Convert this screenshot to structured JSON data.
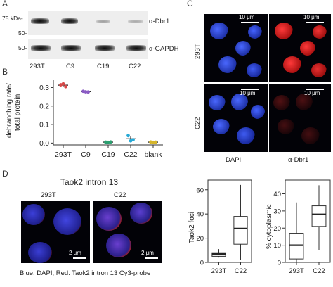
{
  "panels": {
    "A": {
      "label": "A",
      "mw_markers": [
        "75 kDa-",
        "50-",
        "50-"
      ],
      "lanes": [
        "293T",
        "C9",
        "C19",
        "C22"
      ],
      "blots": [
        "α-Dbr1",
        "α-GAPDH"
      ]
    },
    "B": {
      "label": "B",
      "ylabel_line1": "debranching rate/",
      "ylabel_line2": "total protein",
      "title": "",
      "point_colors": [
        "#d84a4a",
        "#8a5bc4",
        "#2a9f6f",
        "#26a9d6",
        "#d6b62a"
      ]
    },
    "C": {
      "label": "C",
      "rows": [
        "293T",
        "C22"
      ],
      "channels": [
        "DAPI",
        "α-Dbr1"
      ],
      "scale_bar": "10 μm"
    },
    "D": {
      "label": "D",
      "title": "Taok2 intron 13",
      "cells": [
        "293T",
        "C22"
      ],
      "scale_bar": "2 μm",
      "caption": "Blue: DAPI; Red: Taok2 intron 13 Cy3-probe",
      "box1_ylabel": "Taok2 foci",
      "box2_ylabel": "% cytoplasmic"
    }
  },
  "chart_data": [
    {
      "type": "scatter",
      "title": "",
      "xlabel": "",
      "ylabel": "debranching rate/ total protein",
      "categories": [
        "293T",
        "C9",
        "C19",
        "C22",
        "blank"
      ],
      "ylim": [
        -0.01,
        0.34
      ],
      "yticks": [
        0.0,
        0.1,
        0.2,
        0.3
      ],
      "ytick_labels": [
        "0.0",
        "0.1",
        "0.2",
        "0.3"
      ],
      "grid": false,
      "series": [
        {
          "values": [
            0.315,
            0.32,
            0.305
          ]
        },
        {
          "values": [
            0.28,
            0.277,
            0.276
          ]
        },
        {
          "values": [
            0.005,
            0.004,
            0.006
          ]
        },
        {
          "values": [
            0.04,
            0.012,
            0.018
          ]
        },
        {
          "values": [
            0.006,
            0.004,
            0.005
          ]
        }
      ],
      "means": [
        0.313,
        0.278,
        0.005,
        0.023,
        0.005
      ],
      "errors": [
        0.007,
        0.002,
        0.001,
        0.012,
        0.001
      ]
    },
    {
      "type": "box",
      "title": "",
      "xlabel": "",
      "ylabel": "Taok2 foci",
      "categories": [
        "293T",
        "C22"
      ],
      "ylim": [
        0,
        68
      ],
      "yticks": [
        0,
        20,
        40,
        60
      ],
      "ytick_labels": [
        "0",
        "20",
        "40",
        "60"
      ],
      "boxes": [
        {
          "whisker_low": 4,
          "q1": 5,
          "median": 7,
          "q3": 8,
          "whisker_high": 11
        },
        {
          "whisker_low": 2,
          "q1": 15,
          "median": 28,
          "q3": 38,
          "whisker_high": 64
        }
      ]
    },
    {
      "type": "box",
      "title": "",
      "xlabel": "",
      "ylabel": "% cytoplasmic",
      "categories": [
        "293T",
        "C22"
      ],
      "ylim": [
        0,
        48
      ],
      "yticks": [
        0,
        10,
        20,
        30,
        40
      ],
      "ytick_labels": [
        "0",
        "10",
        "20",
        "30",
        "40"
      ],
      "boxes": [
        {
          "whisker_low": 0,
          "q1": 2,
          "median": 10,
          "q3": 17,
          "whisker_high": 35
        },
        {
          "whisker_low": 7,
          "q1": 21,
          "median": 28,
          "q3": 33,
          "whisker_high": 45
        }
      ]
    }
  ]
}
